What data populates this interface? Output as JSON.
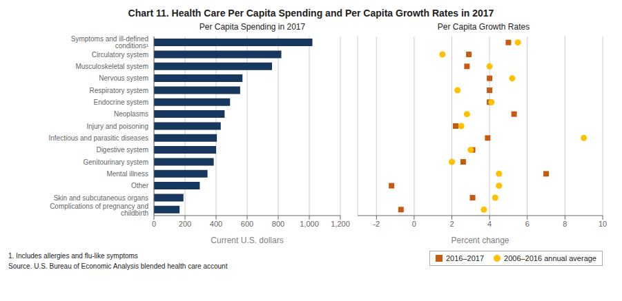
{
  "chart_data": [
    {
      "type": "bar",
      "title": "Chart 11. Health Care Per Capita Spending and Per Capita Growth Rates in 2017",
      "subtitle": "Per Capita Spending in 2017",
      "orientation": "horizontal",
      "categories": [
        "Symptoms and ill-defined conditions¹",
        "Circulatory system",
        "Musculoskeletal system",
        "Nervous system",
        "Respiratory system",
        "Endocrine system",
        "Neoplasms",
        "Injury and poisoning",
        "Infectious and parasitic diseases",
        "Digestive system",
        "Genitourinary system",
        "Mental illness",
        "Other",
        "Skin and subcutaneous organs",
        "Complications of pregnancy and childbirth"
      ],
      "values": [
        1020,
        820,
        760,
        570,
        555,
        490,
        455,
        430,
        405,
        400,
        385,
        345,
        295,
        190,
        165
      ],
      "color": "#17375e",
      "xlabel": "Current U.S. dollars",
      "xlim": [
        0,
        1200
      ],
      "xticks": [
        0,
        200,
        400,
        600,
        800,
        {
          "value": 1000,
          "label": "1,000"
        },
        {
          "value": 1200,
          "label": "1,200"
        }
      ],
      "grid": true,
      "annotations": [
        "1. Includes allergies and flu-like symptoms",
        "Source. U.S. Bureau of Economic Analysis blended health care account"
      ]
    },
    {
      "type": "scatter",
      "subtitle": "Per Capita Growth Rates",
      "categories": [
        "Symptoms and ill-defined conditions¹",
        "Circulatory system",
        "Musculoskeletal system",
        "Nervous system",
        "Respiratory system",
        "Endocrine system",
        "Neoplasms",
        "Injury and poisoning",
        "Infectious and parasitic diseases",
        "Digestive system",
        "Genitourinary system",
        "Mental illness",
        "Other",
        "Skin and subcutaneous organs",
        "Complications of pregnancy and childbirth"
      ],
      "tick_labels": "x",
      "series": [
        {
          "name": "2016–2017",
          "color": "#c55a11",
          "marker": "square",
          "values": [
            5.0,
            2.9,
            2.8,
            4.0,
            4.0,
            4.0,
            5.3,
            2.2,
            3.9,
            3.1,
            2.6,
            7.0,
            -1.2,
            3.1,
            -0.7
          ]
        },
        {
          "name": "2006–2016 annual average",
          "color": "#ffc000",
          "marker": "circle",
          "values": [
            5.5,
            1.5,
            4.0,
            5.2,
            2.3,
            4.1,
            2.8,
            2.5,
            9.0,
            3.0,
            2.0,
            4.5,
            4.5,
            4.3,
            3.7
          ]
        }
      ],
      "xlabel": "Percent change",
      "xlim": [
        -3,
        10
      ],
      "xticks": [
        -2,
        0,
        2,
        4,
        6,
        8,
        10
      ],
      "grid": true,
      "legend": "lower right"
    }
  ]
}
